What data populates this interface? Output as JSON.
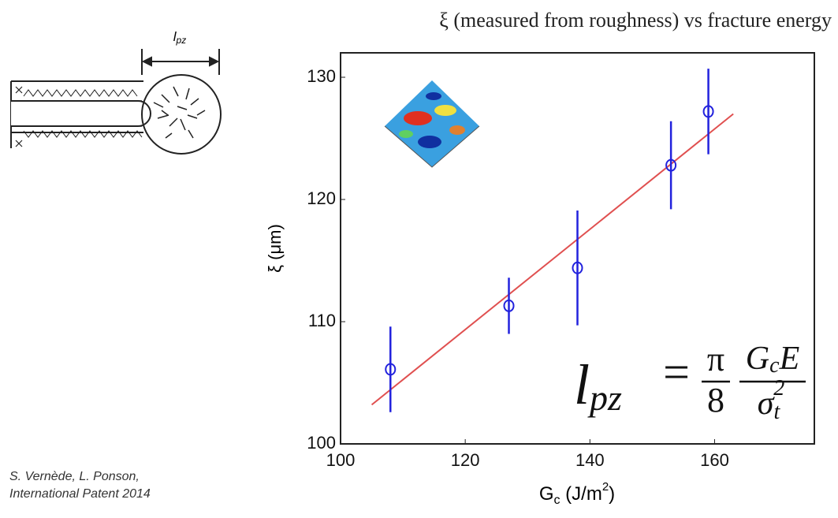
{
  "chart_data": {
    "type": "scatter",
    "title": "ξ (measured from roughness) vs fracture energy",
    "y_label": "ξ (μm)",
    "x_label": {
      "base": "G",
      "sub": "c",
      "unit": " (J/m",
      "sup": "2",
      "close": ")"
    },
    "xlim": [
      100,
      176
    ],
    "xticks": [
      100,
      120,
      140,
      160
    ],
    "ylim": [
      100,
      132
    ],
    "yticks": [
      100,
      110,
      120,
      130
    ],
    "series": [
      {
        "color": "#2222dd",
        "x": [
          108,
          127,
          138,
          153,
          159
        ],
        "values": [
          106.1,
          111.3,
          114.4,
          122.8,
          127.2
        ],
        "errors": [
          3.5,
          2.3,
          4.7,
          3.6,
          3.5
        ]
      }
    ],
    "fit_line": {
      "color": "#e05050",
      "x": [
        105,
        163
      ],
      "y": [
        103.2,
        127
      ]
    },
    "formula": {
      "lhs": "l",
      "lhs_sub": "pz",
      "eq": "=",
      "num1": "π",
      "den1": "8",
      "num2": "G",
      "num2_sub": "c",
      "num2_rest": "E",
      "den2": "σ",
      "den2_sub": "t",
      "den2_sup": "2"
    }
  },
  "diagram": {
    "label": "l",
    "label_sub": "pz"
  },
  "citation": [
    "S. Vernède, L. Ponson,",
    "International Patent 2014"
  ]
}
